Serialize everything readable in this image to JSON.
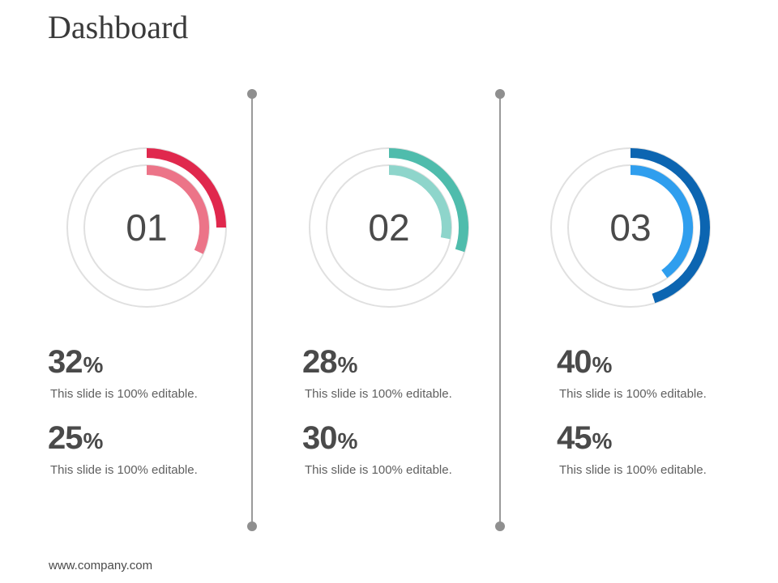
{
  "page": {
    "title": "Dashboard",
    "footer": "www.company.com"
  },
  "chart_data": [
    {
      "type": "donut",
      "center_label": "01",
      "outer_arc_value": 0.25,
      "inner_arc_value": 0.32,
      "track_color": "#e0e0e0",
      "outer_arc_color": "#e0284d",
      "inner_arc_color": "#ec7488",
      "stats": [
        {
          "value": "32",
          "unit": "%",
          "description": "This slide is 100% editable."
        },
        {
          "value": "25",
          "unit": "%",
          "description": "This slide is 100% editable."
        }
      ]
    },
    {
      "type": "donut",
      "center_label": "02",
      "outer_arc_value": 0.3,
      "inner_arc_value": 0.28,
      "track_color": "#e0e0e0",
      "outer_arc_color": "#4fbcac",
      "inner_arc_color": "#8ed5cb",
      "stats": [
        {
          "value": "28",
          "unit": "%",
          "description": "This slide is 100% editable."
        },
        {
          "value": "30",
          "unit": "%",
          "description": "This slide is 100% editable."
        }
      ]
    },
    {
      "type": "donut",
      "center_label": "03",
      "outer_arc_value": 0.45,
      "inner_arc_value": 0.4,
      "track_color": "#e0e0e0",
      "outer_arc_color": "#0c65b1",
      "inner_arc_color": "#2f9eee",
      "stats": [
        {
          "value": "40",
          "unit": "%",
          "description": "This slide is 100% editable."
        },
        {
          "value": "45",
          "unit": "%",
          "description": "This slide is 100% editable."
        }
      ]
    }
  ],
  "decorations": {
    "divider_color": "#9a9a9a",
    "dot_color": "#8f8f8f",
    "text_color": "#4a4a4a"
  }
}
